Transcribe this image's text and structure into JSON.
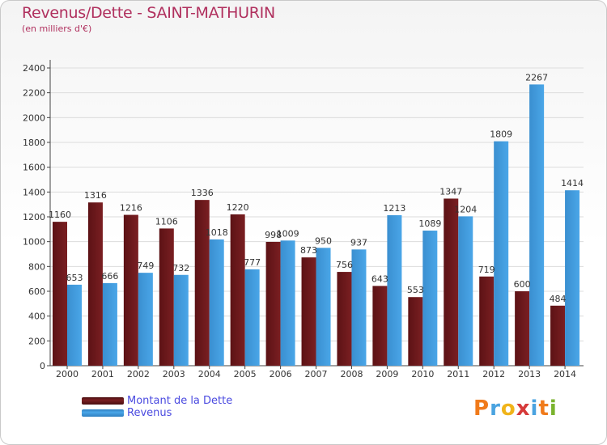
{
  "header": {
    "title": "Revenus/Dette - SAINT-MATHURIN",
    "subtitle": "(en milliers d'€)"
  },
  "logo": {
    "text": "Proxiti",
    "colors": [
      "#f07a1a",
      "#4aa3e0",
      "#f0b41a",
      "#d63a3a",
      "#4aa3e0",
      "#f07a1a",
      "#7ab32e"
    ]
  },
  "colors": {
    "dette": "#7a1f22",
    "revenus": "#4aa6e8",
    "title": "#b0305e",
    "legend_text": "#4a4ae0"
  },
  "chart_data": {
    "type": "bar",
    "categories": [
      "2000",
      "2001",
      "2002",
      "2003",
      "2004",
      "2005",
      "2006",
      "2007",
      "2008",
      "2009",
      "2010",
      "2011",
      "2012",
      "2013",
      "2014"
    ],
    "series": [
      {
        "name": "Montant de la Dette",
        "values": [
          1160,
          1316,
          1216,
          1106,
          1336,
          1220,
          998,
          873,
          756,
          643,
          553,
          1347,
          719,
          600,
          484
        ]
      },
      {
        "name": "Revenus",
        "values": [
          653,
          666,
          749,
          732,
          1018,
          777,
          1009,
          950,
          937,
          1213,
          1089,
          1204,
          1809,
          2267,
          1414
        ]
      }
    ],
    "yticks": [
      0,
      200,
      400,
      600,
      800,
      1000,
      1200,
      1400,
      1600,
      1800,
      2000,
      2200,
      2400
    ],
    "ylim": [
      0,
      2400
    ],
    "grid": true,
    "legend": "bottom-left"
  }
}
